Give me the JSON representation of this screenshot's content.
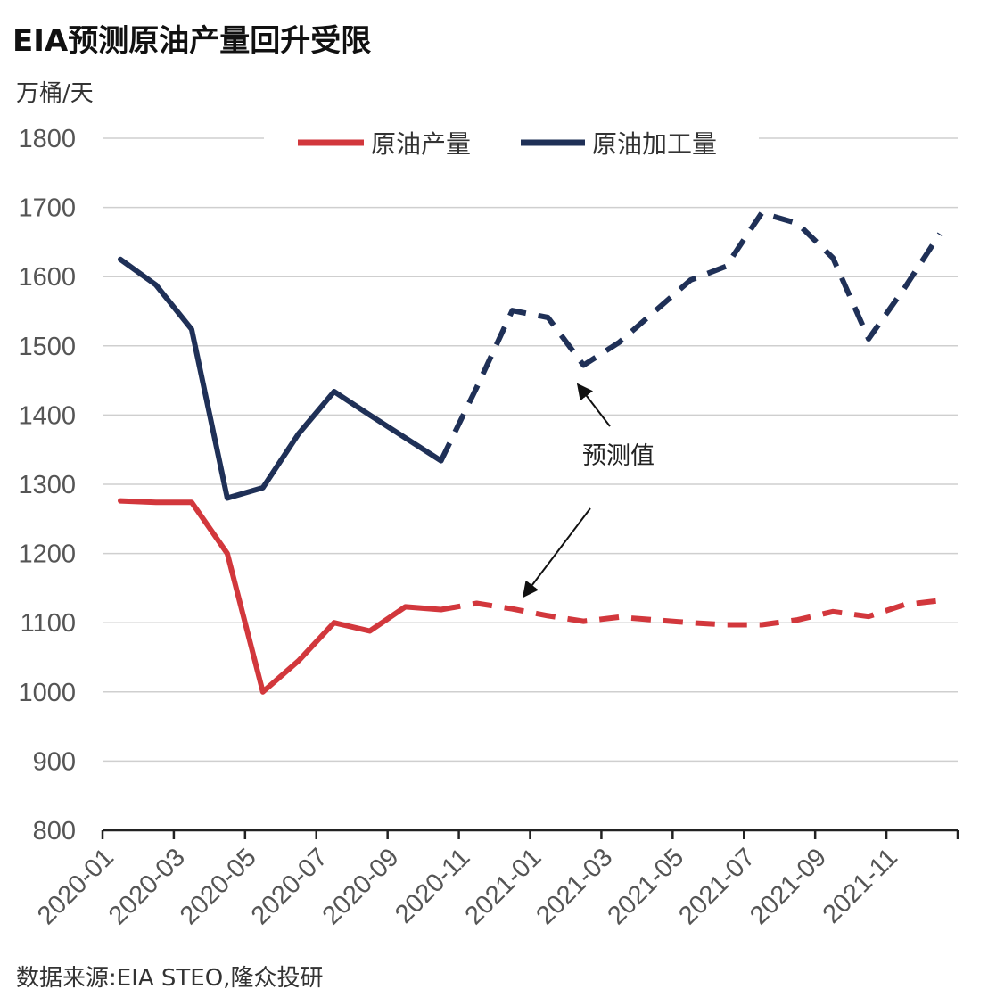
{
  "title": "EIA预测原油产量回升受限",
  "unit_label": "万桶/天",
  "source": "数据来源:EIA STEO,隆众投研",
  "colors": {
    "crude_production": "#d2373c",
    "crude_processing": "#1f3057",
    "grid": "#cfcfcf",
    "axis": "#222222"
  },
  "chart_data": {
    "type": "line",
    "ylim": [
      800,
      1800
    ],
    "yticks": [
      800,
      900,
      1000,
      1100,
      1200,
      1300,
      1400,
      1500,
      1600,
      1700,
      1800
    ],
    "xtick_labels": [
      "2020-01",
      "2020-03",
      "2020-05",
      "2020-07",
      "2020-09",
      "2020-11",
      "2021-01",
      "2021-03",
      "2021-05",
      "2021-07",
      "2021-09",
      "2021-11"
    ],
    "x": [
      "2020-01",
      "2020-02",
      "2020-03",
      "2020-04",
      "2020-05",
      "2020-06",
      "2020-07",
      "2020-08",
      "2020-09",
      "2020-10",
      "2020-11",
      "2020-12",
      "2021-01",
      "2021-02",
      "2021-03",
      "2021-04",
      "2021-05",
      "2021-06",
      "2021-07",
      "2021-08",
      "2021-09",
      "2021-10",
      "2021-11",
      "2021-12"
    ],
    "forecast_start": "2020-10",
    "grid": true,
    "legend_position": "top",
    "series": [
      {
        "name": "原油产量",
        "values": [
          1276,
          1274,
          1274,
          1200,
          1000,
          1045,
          1100,
          1088,
          1123,
          1119,
          1128,
          1120,
          1110,
          1102,
          1108,
          1104,
          1100,
          1097,
          1097,
          1104,
          1116,
          1109,
          1126,
          1132
        ]
      },
      {
        "name": "原油加工量",
        "values": [
          1625,
          1588,
          1524,
          1280,
          1295,
          1373,
          1434,
          1400,
          1367,
          1334,
          1440,
          1551,
          1541,
          1472,
          1505,
          1550,
          1595,
          1615,
          1692,
          1677,
          1627,
          1510,
          1583,
          1662
        ]
      }
    ],
    "annotations": [
      {
        "text": "预测值"
      }
    ]
  }
}
